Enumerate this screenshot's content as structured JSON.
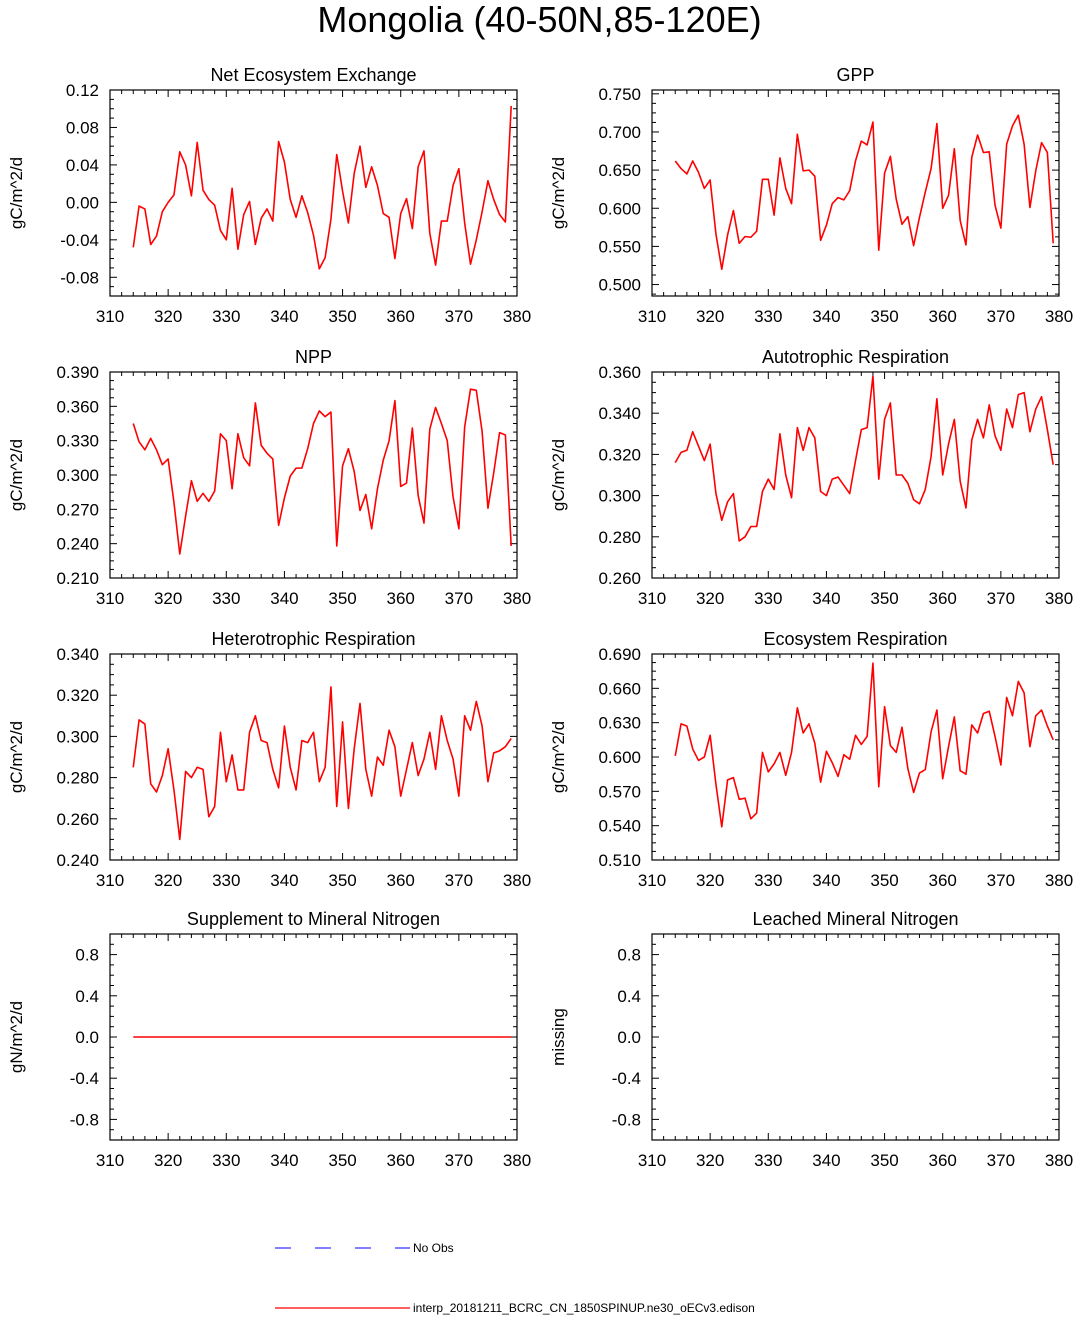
{
  "figure_title": "Mongolia (40-50N,85-120E)",
  "colors": {
    "model": "#ff0000",
    "obs": "#0000ff",
    "axes": "#000000"
  },
  "legend": {
    "obs_label": "No Obs",
    "model_label": "interp_20181211_BCRC_CN_1850SPINUP.ne30_oECv3.edison"
  },
  "chart_data": [
    {
      "type": "line",
      "title": "Net Ecosystem Exchange",
      "ylabel": "gC/m^2/d",
      "xlim": [
        310,
        380
      ],
      "ylim": [
        -0.1,
        0.12
      ],
      "xticks": [
        "310",
        "320",
        "330",
        "340",
        "350",
        "360",
        "370",
        "380"
      ],
      "yticks": [
        -0.08,
        -0.04,
        0.0,
        0.04,
        0.08,
        0.12
      ],
      "ytick_labels": [
        "-0.08",
        "-0.04",
        "0.00",
        "0.04",
        "0.08",
        "0.12"
      ],
      "x_start": 314,
      "series": [
        {
          "values": [
            -0.048,
            -0.004,
            -0.007,
            -0.045,
            -0.036,
            -0.01,
            0.0,
            0.008,
            0.054,
            0.04,
            0.007,
            0.064,
            0.013,
            0.003,
            -0.003,
            -0.03,
            -0.04,
            0.015,
            -0.05,
            -0.013,
            0.001,
            -0.045,
            -0.017,
            -0.007,
            -0.02,
            0.065,
            0.043,
            0.003,
            -0.016,
            0.007,
            -0.011,
            -0.035,
            -0.071,
            -0.059,
            -0.018,
            0.051,
            0.012,
            -0.022,
            0.031,
            0.06,
            0.016,
            0.038,
            0.018,
            -0.012,
            -0.016,
            -0.06,
            -0.012,
            0.004,
            -0.028,
            0.038,
            0.055,
            -0.033,
            -0.067,
            -0.02,
            -0.02,
            0.018,
            0.036,
            -0.022,
            -0.066,
            -0.04,
            -0.01,
            0.023,
            0.003,
            -0.013,
            -0.021,
            0.103
          ]
        }
      ]
    },
    {
      "type": "line",
      "title": "GPP",
      "ylabel": "gC/m^2/d",
      "xlim": [
        310,
        380
      ],
      "ylim": [
        0.485,
        0.755
      ],
      "xticks": [
        "310",
        "320",
        "330",
        "340",
        "350",
        "360",
        "370",
        "380"
      ],
      "yticks": [
        0.5,
        0.55,
        0.6,
        0.65,
        0.7,
        0.75
      ],
      "ytick_labels": [
        "0.500",
        "0.550",
        "0.600",
        "0.650",
        "0.700",
        "0.750"
      ],
      "x_start": 314,
      "series": [
        {
          "values": [
            0.662,
            0.652,
            0.645,
            0.662,
            0.647,
            0.626,
            0.637,
            0.566,
            0.52,
            0.565,
            0.597,
            0.554,
            0.563,
            0.562,
            0.57,
            0.638,
            0.638,
            0.591,
            0.666,
            0.626,
            0.606,
            0.697,
            0.649,
            0.65,
            0.642,
            0.558,
            0.578,
            0.606,
            0.614,
            0.611,
            0.623,
            0.662,
            0.688,
            0.683,
            0.713,
            0.545,
            0.646,
            0.668,
            0.612,
            0.579,
            0.589,
            0.551,
            0.588,
            0.621,
            0.652,
            0.711,
            0.6,
            0.617,
            0.678,
            0.584,
            0.552,
            0.667,
            0.696,
            0.673,
            0.674,
            0.604,
            0.574,
            0.684,
            0.708,
            0.722,
            0.684,
            0.601,
            0.649,
            0.686,
            0.673,
            0.554
          ]
        }
      ]
    },
    {
      "type": "line",
      "title": "NPP",
      "ylabel": "gC/m^2/d",
      "xlim": [
        310,
        380
      ],
      "ylim": [
        0.21,
        0.39
      ],
      "xticks": [
        "310",
        "320",
        "330",
        "340",
        "350",
        "360",
        "370",
        "380"
      ],
      "yticks": [
        0.21,
        0.24,
        0.27,
        0.3,
        0.33,
        0.36,
        0.39
      ],
      "ytick_labels": [
        "0.210",
        "0.240",
        "0.270",
        "0.300",
        "0.330",
        "0.360",
        "0.390"
      ],
      "x_start": 314,
      "series": [
        {
          "values": [
            0.345,
            0.329,
            0.322,
            0.332,
            0.322,
            0.309,
            0.314,
            0.276,
            0.231,
            0.264,
            0.295,
            0.277,
            0.284,
            0.277,
            0.286,
            0.336,
            0.33,
            0.288,
            0.336,
            0.315,
            0.308,
            0.363,
            0.326,
            0.319,
            0.314,
            0.256,
            0.28,
            0.299,
            0.306,
            0.306,
            0.323,
            0.345,
            0.356,
            0.351,
            0.355,
            0.238,
            0.308,
            0.323,
            0.303,
            0.269,
            0.283,
            0.253,
            0.288,
            0.313,
            0.33,
            0.365,
            0.29,
            0.293,
            0.341,
            0.282,
            0.258,
            0.34,
            0.359,
            0.345,
            0.33,
            0.281,
            0.253,
            0.342,
            0.375,
            0.374,
            0.338,
            0.271,
            0.302,
            0.337,
            0.335,
            0.238
          ]
        }
      ]
    },
    {
      "type": "line",
      "title": "Autotrophic Respiration",
      "ylabel": "gC/m^2/d",
      "xlim": [
        310,
        380
      ],
      "ylim": [
        0.26,
        0.36
      ],
      "xticks": [
        "310",
        "320",
        "330",
        "340",
        "350",
        "360",
        "370",
        "380"
      ],
      "yticks": [
        0.26,
        0.28,
        0.3,
        0.32,
        0.34,
        0.36
      ],
      "ytick_labels": [
        "0.260",
        "0.280",
        "0.300",
        "0.320",
        "0.340",
        "0.360"
      ],
      "x_start": 314,
      "series": [
        {
          "values": [
            0.316,
            0.321,
            0.322,
            0.331,
            0.324,
            0.317,
            0.325,
            0.301,
            0.288,
            0.297,
            0.301,
            0.278,
            0.28,
            0.285,
            0.285,
            0.302,
            0.308,
            0.303,
            0.33,
            0.31,
            0.299,
            0.333,
            0.322,
            0.333,
            0.328,
            0.302,
            0.3,
            0.308,
            0.309,
            0.305,
            0.301,
            0.317,
            0.332,
            0.333,
            0.358,
            0.308,
            0.337,
            0.345,
            0.31,
            0.31,
            0.306,
            0.298,
            0.296,
            0.303,
            0.319,
            0.347,
            0.31,
            0.325,
            0.337,
            0.307,
            0.294,
            0.327,
            0.337,
            0.328,
            0.344,
            0.329,
            0.322,
            0.342,
            0.333,
            0.349,
            0.35,
            0.331,
            0.342,
            0.348,
            0.332,
            0.315
          ]
        }
      ]
    },
    {
      "type": "line",
      "title": "Heterotrophic Respiration",
      "ylabel": "gC/m^2/d",
      "xlim": [
        310,
        380
      ],
      "ylim": [
        0.24,
        0.34
      ],
      "xticks": [
        "310",
        "320",
        "330",
        "340",
        "350",
        "360",
        "370",
        "380"
      ],
      "yticks": [
        0.24,
        0.26,
        0.28,
        0.3,
        0.32,
        0.34
      ],
      "ytick_labels": [
        "0.240",
        "0.260",
        "0.280",
        "0.300",
        "0.320",
        "0.340"
      ],
      "x_start": 314,
      "series": [
        {
          "values": [
            0.285,
            0.308,
            0.306,
            0.277,
            0.273,
            0.281,
            0.294,
            0.274,
            0.25,
            0.283,
            0.28,
            0.285,
            0.284,
            0.261,
            0.266,
            0.302,
            0.278,
            0.291,
            0.274,
            0.274,
            0.302,
            0.31,
            0.298,
            0.297,
            0.284,
            0.275,
            0.305,
            0.285,
            0.274,
            0.298,
            0.297,
            0.302,
            0.278,
            0.285,
            0.324,
            0.266,
            0.307,
            0.265,
            0.294,
            0.316,
            0.284,
            0.271,
            0.29,
            0.286,
            0.303,
            0.295,
            0.271,
            0.284,
            0.297,
            0.281,
            0.289,
            0.302,
            0.284,
            0.31,
            0.298,
            0.289,
            0.271,
            0.31,
            0.303,
            0.317,
            0.305,
            0.278,
            0.292,
            0.293,
            0.295,
            0.299
          ]
        }
      ]
    },
    {
      "type": "line",
      "title": "Ecosystem Respiration",
      "ylabel": "gC/m^2/d",
      "xlim": [
        310,
        380
      ],
      "ylim": [
        0.51,
        0.69
      ],
      "xticks": [
        "310",
        "320",
        "330",
        "340",
        "350",
        "360",
        "370",
        "380"
      ],
      "yticks": [
        0.51,
        0.54,
        0.57,
        0.6,
        0.63,
        0.66,
        0.69
      ],
      "ytick_labels": [
        "0.510",
        "0.540",
        "0.570",
        "0.600",
        "0.630",
        "0.660",
        "0.690"
      ],
      "x_start": 314,
      "series": [
        {
          "values": [
            0.601,
            0.629,
            0.627,
            0.607,
            0.597,
            0.6,
            0.619,
            0.576,
            0.539,
            0.58,
            0.582,
            0.563,
            0.564,
            0.546,
            0.551,
            0.604,
            0.587,
            0.594,
            0.604,
            0.584,
            0.604,
            0.643,
            0.621,
            0.629,
            0.612,
            0.578,
            0.605,
            0.595,
            0.583,
            0.602,
            0.598,
            0.619,
            0.611,
            0.618,
            0.682,
            0.574,
            0.644,
            0.61,
            0.604,
            0.626,
            0.59,
            0.569,
            0.586,
            0.589,
            0.622,
            0.641,
            0.581,
            0.609,
            0.635,
            0.588,
            0.585,
            0.628,
            0.621,
            0.638,
            0.64,
            0.618,
            0.593,
            0.652,
            0.636,
            0.666,
            0.656,
            0.609,
            0.636,
            0.641,
            0.627,
            0.615
          ]
        }
      ]
    },
    {
      "type": "line",
      "title": "Supplement to Mineral Nitrogen",
      "ylabel": "gN/m^2/d",
      "xlim": [
        310,
        380
      ],
      "ylim": [
        -1.0,
        1.0
      ],
      "xticks": [
        "310",
        "320",
        "330",
        "340",
        "350",
        "360",
        "370",
        "380"
      ],
      "yticks": [
        -0.8,
        -0.4,
        0.0,
        0.4,
        0.8
      ],
      "ytick_labels": [
        "-0.8",
        "-0.4",
        "0.0",
        "0.4",
        "0.8"
      ],
      "x_start": 314,
      "series": [
        {
          "values": [
            0,
            0,
            0,
            0,
            0,
            0,
            0,
            0,
            0,
            0,
            0,
            0,
            0,
            0,
            0,
            0,
            0,
            0,
            0,
            0,
            0,
            0,
            0,
            0,
            0,
            0,
            0,
            0,
            0,
            0,
            0,
            0,
            0,
            0,
            0,
            0,
            0,
            0,
            0,
            0,
            0,
            0,
            0,
            0,
            0,
            0,
            0,
            0,
            0,
            0,
            0,
            0,
            0,
            0,
            0,
            0,
            0,
            0,
            0,
            0,
            0,
            0,
            0,
            0,
            0,
            0
          ]
        }
      ]
    },
    {
      "type": "line",
      "title": "Leached Mineral Nitrogen",
      "ylabel": "missing",
      "xlim": [
        310,
        380
      ],
      "ylim": [
        -1.0,
        1.0
      ],
      "xticks": [
        "310",
        "320",
        "330",
        "340",
        "350",
        "360",
        "370",
        "380"
      ],
      "yticks": [
        -0.8,
        -0.4,
        0.0,
        0.4,
        0.8
      ],
      "ytick_labels": [
        "-0.8",
        "-0.4",
        "0.0",
        "0.4",
        "0.8"
      ],
      "x_start": 314,
      "series": []
    }
  ]
}
